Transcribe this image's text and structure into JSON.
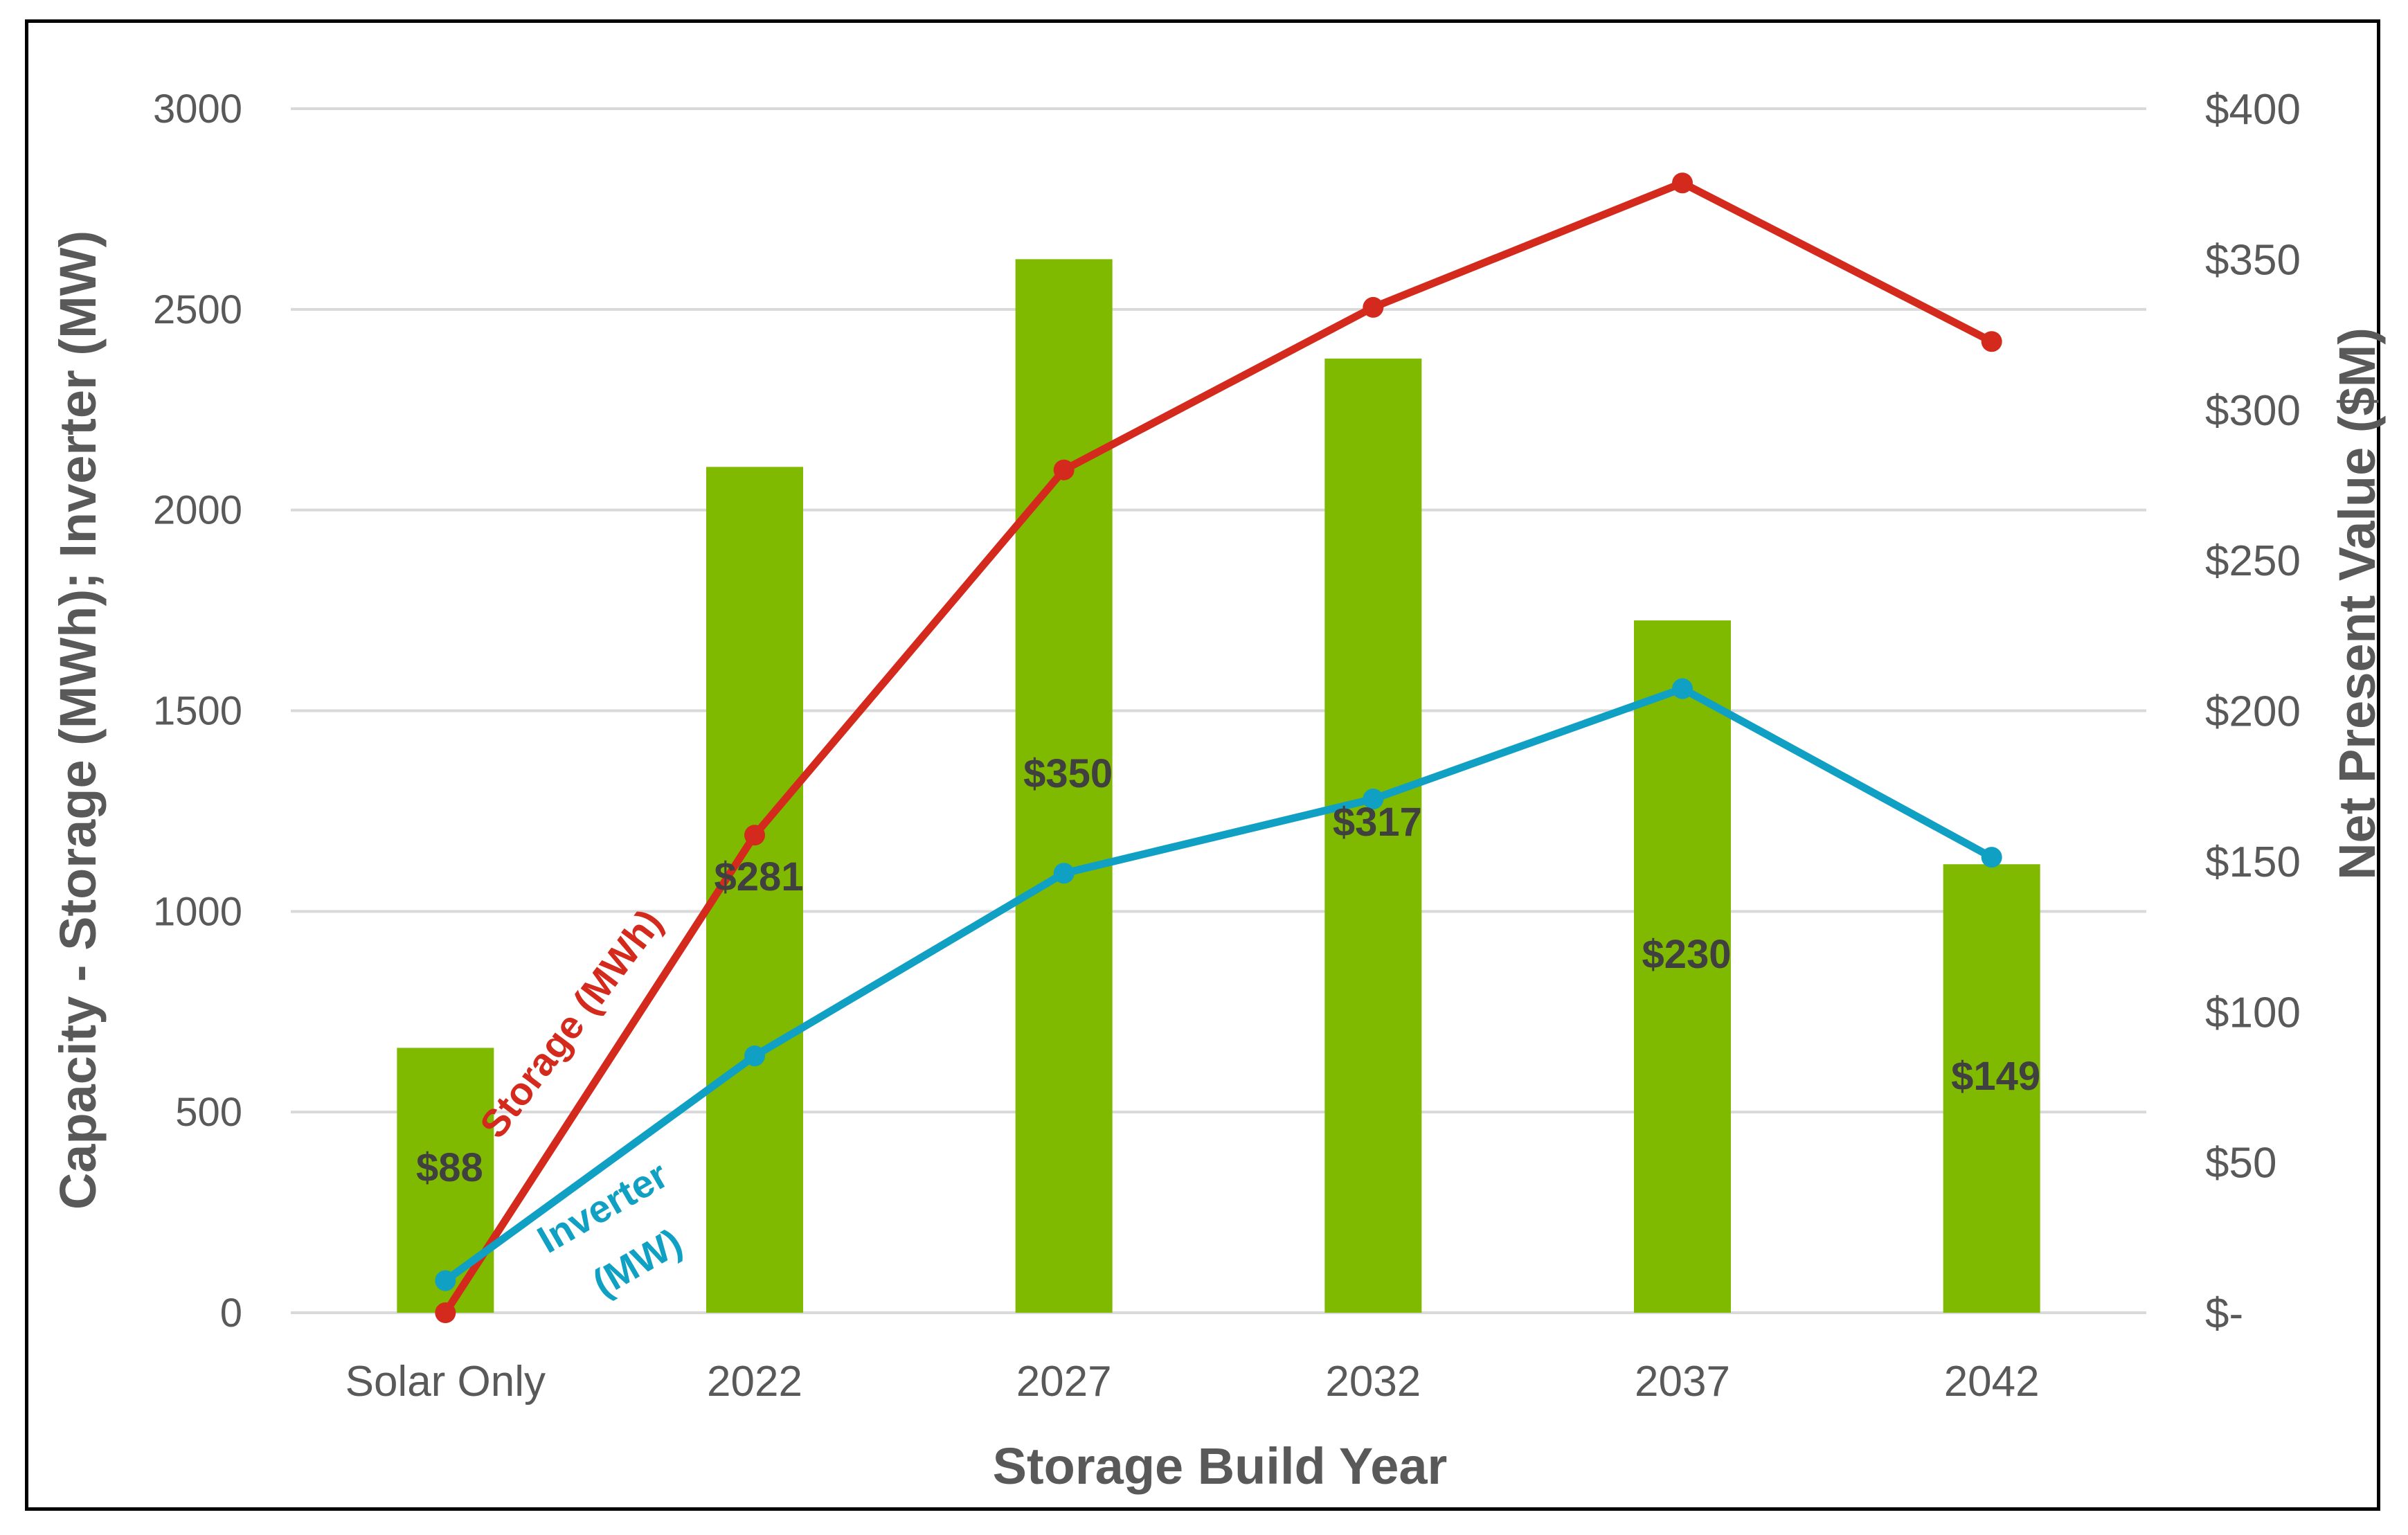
{
  "chart_data": {
    "type": "bar",
    "categories": [
      "Solar Only",
      "2022",
      "2027",
      "2032",
      "2037",
      "2042"
    ],
    "xlabel": "Storage Build Year",
    "ylabel": "Capacity - Storage (MWh); Inverter (MW)",
    "ylabel_right": "Net Present Value ($M)",
    "ylim": [
      0,
      3000
    ],
    "ylim_right": [
      0,
      400
    ],
    "yticks": [
      0,
      500,
      1000,
      1500,
      2000,
      2500,
      3000
    ],
    "yticks_right": [
      0,
      50,
      100,
      150,
      200,
      250,
      300,
      350,
      400
    ],
    "ytick_labels_right": [
      "$-",
      "$50",
      "$100",
      "$150",
      "$200",
      "$250",
      "$300",
      "$350",
      "$400"
    ],
    "grid": true,
    "bar_series": {
      "name": "Net Present Value ($M)",
      "axis": "right",
      "color": "#7fba00",
      "values": [
        88,
        281,
        350,
        317,
        230,
        149
      ],
      "labels": [
        "$88",
        "$281",
        "$350",
        "$317",
        "$230",
        "$149"
      ]
    },
    "series": [
      {
        "name": "Storage (MWh)",
        "label": "Storage (MWh)",
        "axis": "left",
        "color": "#d42a1e",
        "values": [
          0,
          1190,
          2100,
          2505,
          2815,
          2420
        ]
      },
      {
        "name": "Inverter (MW)",
        "label_line1": "Inverter",
        "label_line2": "(MW)",
        "axis": "left",
        "color": "#0fa0c4",
        "values": [
          80,
          640,
          1095,
          1280,
          1555,
          1135
        ]
      }
    ]
  }
}
